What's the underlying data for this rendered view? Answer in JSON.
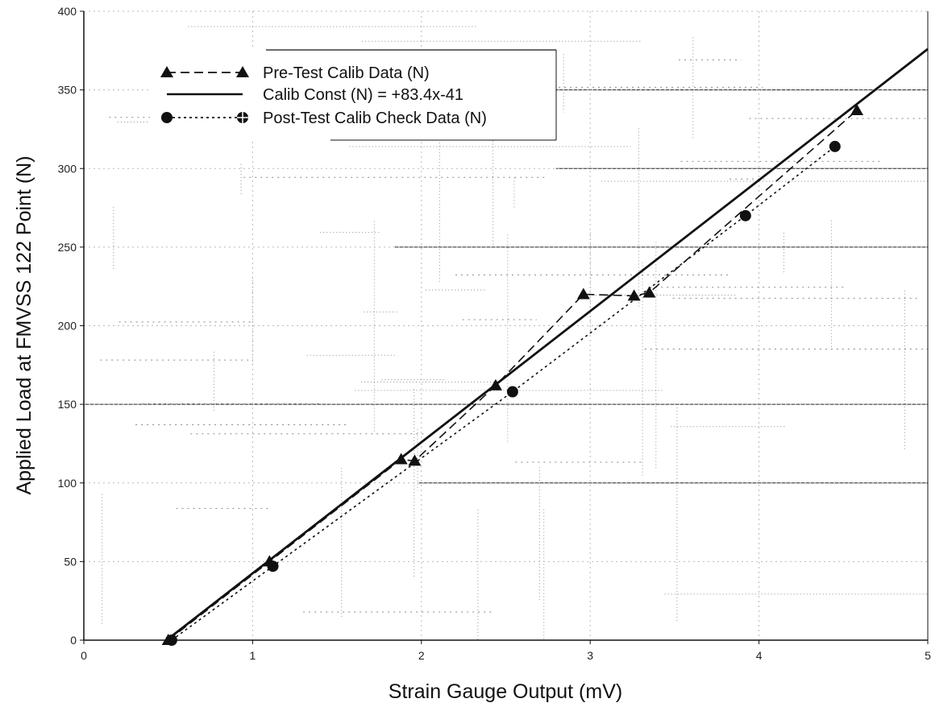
{
  "chart_data": {
    "type": "scatter",
    "title": "",
    "xlabel": "Strain Gauge Output (mV)",
    "ylabel": "Applied Load at FMVSS 122 Point (N)",
    "xlim": [
      0,
      5
    ],
    "ylim": [
      0,
      400
    ],
    "x_ticks": [
      0,
      1,
      2,
      3,
      4,
      5
    ],
    "y_ticks": [
      0,
      50,
      100,
      150,
      200,
      250,
      300,
      350,
      400
    ],
    "grid": true,
    "legend_position": "top-left",
    "series": [
      {
        "name": "Pre-Test Calib Data (N)",
        "marker": "triangle",
        "line": "dashed",
        "x": [
          0.5,
          1.1,
          1.88,
          1.96,
          2.44,
          2.96,
          3.26,
          3.35,
          4.58
        ],
        "y": [
          0,
          50,
          115,
          114,
          162,
          220,
          219,
          221,
          337
        ]
      },
      {
        "name": "Calib Const (N) = +83.4x-41",
        "marker": "none",
        "line": "solid",
        "slope": 83.4,
        "intercept": -41,
        "x": [
          0.49,
          5.0
        ],
        "y": [
          0,
          376
        ]
      },
      {
        "name": "Post-Test Calib Check Data (N)",
        "marker": "circle",
        "line": "dotted",
        "x": [
          0.52,
          1.12,
          2.54,
          3.92,
          4.45
        ],
        "y": [
          0,
          47,
          158,
          270,
          314
        ]
      }
    ],
    "colors": {
      "ink": "#111111",
      "grid": "#b9b9b9",
      "noise": "#2a2a2a",
      "background": "#ffffff"
    }
  }
}
